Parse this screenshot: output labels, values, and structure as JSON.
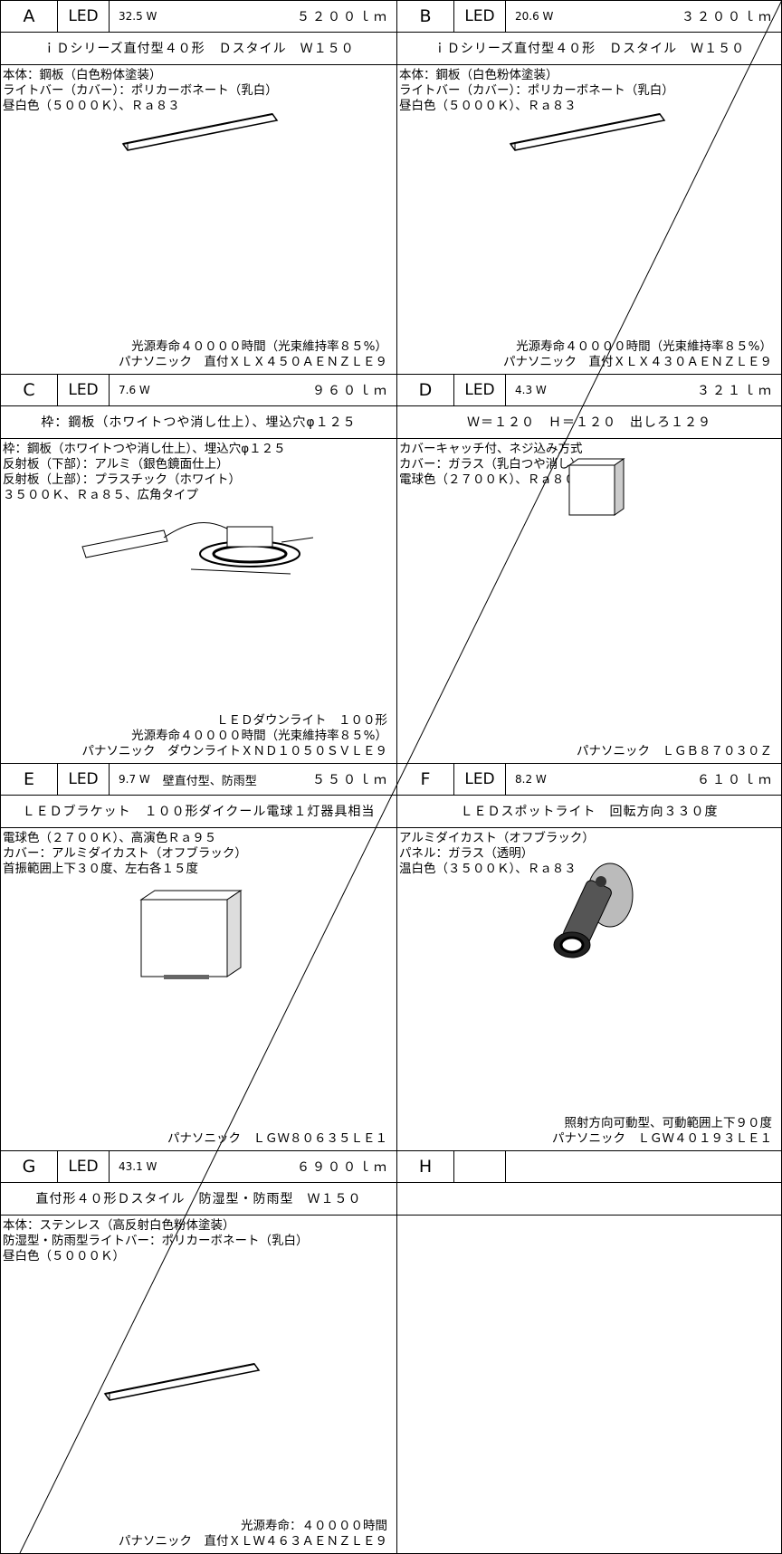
{
  "cells": [
    {
      "letter": "A",
      "kind": "LED",
      "watt": "32.5 W",
      "lumen": "５２００ｌｍ",
      "subtitle": "ｉＤシリーズ直付型４０形　Ｄスタイル　Ｗ１５０",
      "specs": [
        "本体：鋼板（白色粉体塗装）",
        "ライトバー（カバー）：ポリカーボネート（乳白）",
        "昼白色（５０００Ｋ）、Ｒａ８３"
      ],
      "footer": [
        "光源寿命４００００時間（光束維持率８５%）",
        "パナソニック　直付ＸＬＸ４５０ＡＥＮＺＬＥ９"
      ]
    },
    {
      "letter": "B",
      "kind": "LED",
      "watt": "20.6 W",
      "lumen": "３２００ｌｍ",
      "subtitle": "ｉＤシリーズ直付型４０形　Ｄスタイル　Ｗ１５０",
      "specs": [
        "本体：鋼板（白色粉体塗装）",
        "ライトバー（カバー）：ポリカーボネート（乳白）",
        "昼白色（５０００Ｋ）、Ｒａ８３"
      ],
      "footer": [
        "光源寿命４００００時間（光束維持率８５%）",
        "パナソニック　直付ＸＬＸ４３０ＡＥＮＺＬＥ９"
      ]
    },
    {
      "letter": "C",
      "kind": "LED",
      "watt": "7.6 W",
      "lumen": "９６０ｌｍ",
      "subtitle": "枠：鋼板（ホワイトつや消し仕上）、埋込穴φ１２５",
      "specs": [
        "枠：鋼板（ホワイトつや消し仕上）、埋込穴φ１２５",
        "反射板（下部）：アルミ（銀色鏡面仕上）",
        "反射板（上部）：プラスチック（ホワイト）",
        "３５００Ｋ、Ｒａ８５、広角タイプ"
      ],
      "footer": [
        "ＬＥＤダウンライト　１００形",
        "光源寿命４００００時間（光束維持率８５%）",
        "パナソニック　ダウンライトＸＮＤ１０５０ＳＶＬＥ９"
      ]
    },
    {
      "letter": "D",
      "kind": "LED",
      "watt": "4.3 W",
      "lumen": "３２１ｌｍ",
      "subtitle": "Ｗ＝１２０　Ｈ＝１２０　出しろ１２９",
      "specs": [
        "カバーキャッチ付、ネジ込み方式",
        "カバー：ガラス（乳白つや消し）",
        "電球色（２７００Ｋ）、Ｒａ８０"
      ],
      "footer": [
        "パナソニック　ＬＧＢ８７０３０Ｚ"
      ]
    },
    {
      "letter": "E",
      "kind": "LED",
      "watt": "9.7 W",
      "extra": "壁直付型、防雨型",
      "lumen": "５５０ｌｍ",
      "subtitle": "ＬＥＤブラケット　１００形ダイクール電球１灯器具相当",
      "specs": [
        "電球色（２７００Ｋ）、高演色Ｒａ９５",
        "カバー：アルミダイカスト（オフブラック）",
        "首振範囲上下３０度、左右各１５度"
      ],
      "footer": [
        "パナソニック　ＬＧＷ８０６３５ＬＥ１"
      ]
    },
    {
      "letter": "F",
      "kind": "LED",
      "watt": "8.2 W",
      "lumen": "６１０ｌｍ",
      "subtitle": "ＬＥＤスポットライト　回転方向３３０度",
      "specs": [
        "アルミダイカスト（オフブラック）",
        "パネル：ガラス（透明）",
        "温白色（３５００Ｋ）、Ｒａ８３"
      ],
      "footer": [
        "照射方向可動型、可動範囲上下９０度",
        "パナソニック　ＬＧＷ４０１９３ＬＥ１"
      ]
    },
    {
      "letter": "G",
      "kind": "LED",
      "watt": "43.1 W",
      "lumen": "６９００ｌｍ",
      "subtitle": "直付形４０形Ｄスタイル　防湿型・防雨型　Ｗ１５０",
      "specs": [
        "本体：ステンレス（高反射白色粉体塗装）",
        "防湿型・防雨型ライトバー：ポリカーボネート（乳白）",
        "昼白色（５０００Ｋ）"
      ],
      "footer": [
        "光源寿命：４００００時間",
        "パナソニック　直付ＸＬＷ４６３ＡＥＮＺＬＥ９"
      ]
    },
    {
      "letter": "H"
    }
  ]
}
